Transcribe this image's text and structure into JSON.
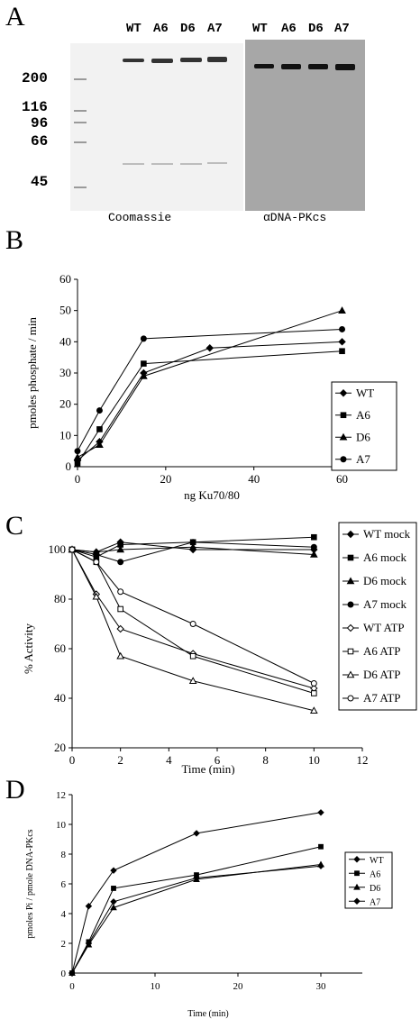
{
  "panels": {
    "a": {
      "letter": "A",
      "coomassie_lanes": [
        "WT",
        "A6",
        "D6",
        "A7"
      ],
      "western_lanes": [
        "WT",
        "A6",
        "D6",
        "A7"
      ],
      "markers": [
        "200",
        "116",
        "96",
        "66",
        "45"
      ],
      "coomassie_label": "Coomassie",
      "western_label": "αDNA-PKcs"
    },
    "b": {
      "letter": "B"
    },
    "c": {
      "letter": "C"
    },
    "d": {
      "letter": "D"
    }
  },
  "chart_data": [
    {
      "id": "b",
      "type": "line",
      "xlabel": "ng Ku70/80",
      "ylabel": "pmoles phosphate / min",
      "xlim": [
        0,
        65
      ],
      "ylim": [
        0,
        60
      ],
      "xticks": [
        0,
        20,
        40,
        60
      ],
      "yticks": [
        0,
        10,
        20,
        30,
        40,
        50,
        60
      ],
      "legend_position": "right",
      "series": [
        {
          "name": "WT",
          "marker": "diamond",
          "filled": true,
          "x": [
            0,
            5,
            15,
            30,
            60
          ],
          "y": [
            2,
            8,
            30,
            38,
            40
          ]
        },
        {
          "name": "A6",
          "marker": "square",
          "filled": true,
          "x": [
            0,
            5,
            15,
            60
          ],
          "y": [
            1,
            12,
            33,
            37
          ]
        },
        {
          "name": "D6",
          "marker": "triangle",
          "filled": true,
          "x": [
            0,
            5,
            15,
            60
          ],
          "y": [
            3,
            7,
            29,
            50
          ]
        },
        {
          "name": "A7",
          "marker": "circle",
          "filled": true,
          "x": [
            0,
            5,
            15,
            60
          ],
          "y": [
            5,
            18,
            41,
            44
          ]
        }
      ]
    },
    {
      "id": "c",
      "type": "line",
      "xlabel": "Time (min)",
      "ylabel": "% Activity",
      "xlim": [
        0,
        12
      ],
      "ylim": [
        20,
        100
      ],
      "xticks": [
        0,
        2,
        4,
        6,
        8,
        10,
        12
      ],
      "yticks": [
        20,
        40,
        60,
        80,
        100
      ],
      "legend_position": "right",
      "series": [
        {
          "name": "WT mock",
          "marker": "diamond",
          "filled": true,
          "x": [
            0,
            1,
            2,
            5,
            10
          ],
          "y": [
            100,
            99,
            103,
            100,
            100
          ]
        },
        {
          "name": "A6 mock",
          "marker": "square",
          "filled": true,
          "x": [
            0,
            1,
            2,
            5,
            10
          ],
          "y": [
            100,
            97,
            102,
            103,
            105
          ]
        },
        {
          "name": "D6 mock",
          "marker": "triangle",
          "filled": true,
          "x": [
            0,
            1,
            2,
            5,
            10
          ],
          "y": [
            100,
            99,
            100,
            101,
            98
          ]
        },
        {
          "name": "A7 mock",
          "marker": "circle",
          "filled": true,
          "x": [
            0,
            1,
            2,
            5,
            10
          ],
          "y": [
            100,
            98,
            95,
            103,
            101
          ]
        },
        {
          "name": "WT ATP",
          "marker": "diamond",
          "filled": false,
          "x": [
            0,
            1,
            2,
            5,
            10
          ],
          "y": [
            100,
            82,
            68,
            58,
            44
          ]
        },
        {
          "name": "A6 ATP",
          "marker": "square",
          "filled": false,
          "x": [
            0,
            1,
            2,
            5,
            10
          ],
          "y": [
            100,
            95,
            76,
            57,
            42
          ]
        },
        {
          "name": "D6 ATP",
          "marker": "triangle",
          "filled": false,
          "x": [
            0,
            1,
            2,
            5,
            10
          ],
          "y": [
            100,
            81,
            57,
            47,
            35
          ]
        },
        {
          "name": "A7 ATP",
          "marker": "circle",
          "filled": false,
          "x": [
            0,
            1,
            2,
            5,
            10
          ],
          "y": [
            100,
            95,
            83,
            70,
            46
          ]
        }
      ]
    },
    {
      "id": "d",
      "type": "line",
      "xlabel": "Time (min)",
      "ylabel": "pmoles Pi / pmole DNA-PKcs",
      "xlim": [
        0,
        35
      ],
      "ylim": [
        0,
        12
      ],
      "xticks": [
        0,
        10,
        20,
        30
      ],
      "yticks": [
        0,
        2,
        4,
        6,
        8,
        10,
        12
      ],
      "legend_position": "right",
      "series": [
        {
          "name": "WT",
          "marker": "diamond",
          "filled": true,
          "x": [
            0,
            2,
            5,
            15,
            30
          ],
          "y": [
            0,
            4.5,
            6.9,
            9.4,
            10.8
          ]
        },
        {
          "name": "A6",
          "marker": "square",
          "filled": true,
          "x": [
            0,
            2,
            5,
            15,
            30
          ],
          "y": [
            0,
            2.1,
            5.7,
            6.6,
            8.5
          ]
        },
        {
          "name": "D6",
          "marker": "triangle",
          "filled": true,
          "x": [
            0,
            2,
            5,
            15,
            30
          ],
          "y": [
            0,
            1.9,
            4.4,
            6.3,
            7.3
          ]
        },
        {
          "name": "A7",
          "marker": "diamond",
          "filled": true,
          "x": [
            0,
            2,
            5,
            15,
            30
          ],
          "y": [
            0,
            2.0,
            4.8,
            6.4,
            7.2
          ]
        }
      ]
    }
  ]
}
